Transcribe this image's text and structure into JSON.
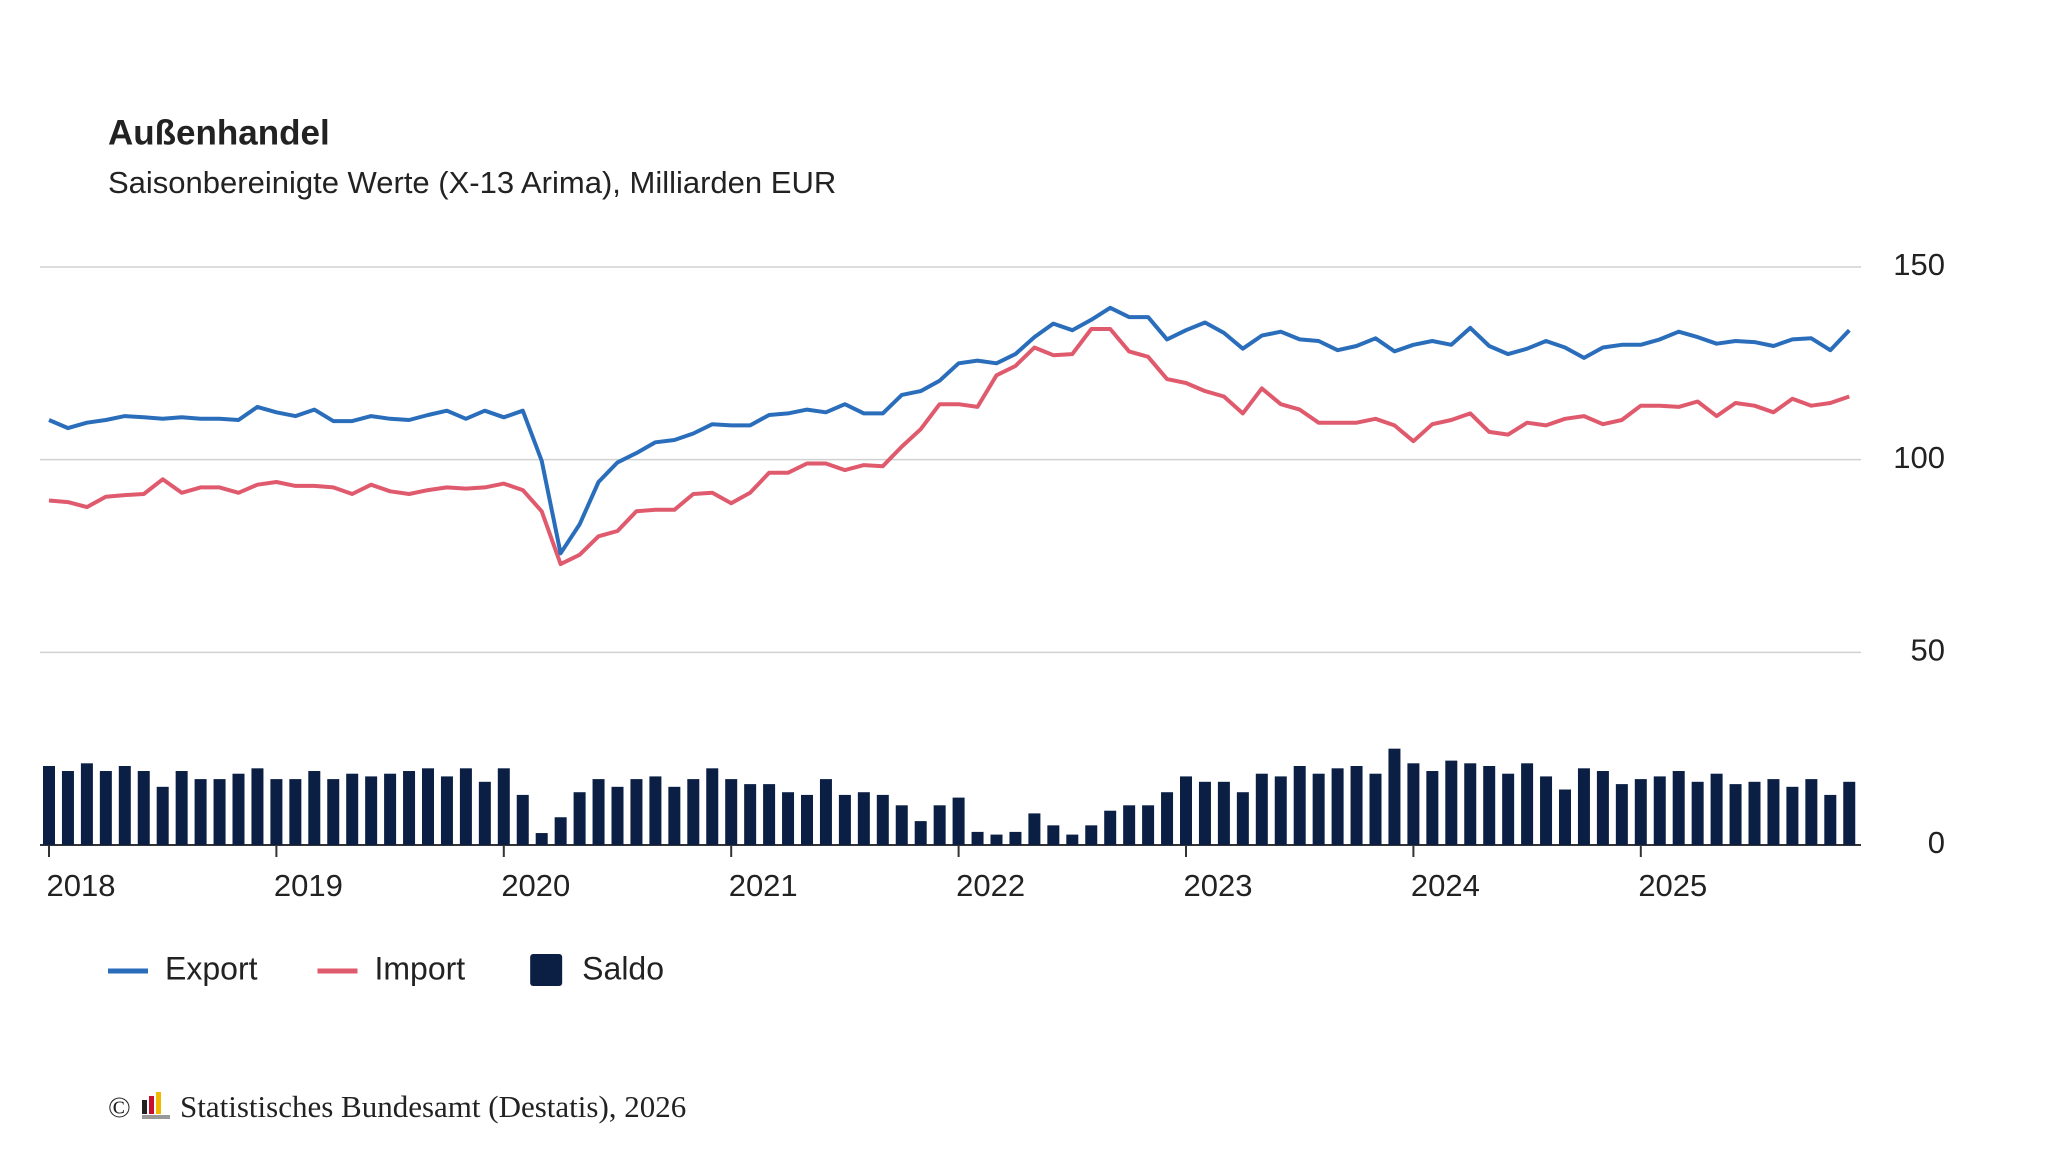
{
  "chart_data": {
    "type": "combo",
    "title": "Außenhandel",
    "subtitle": "Saisonbereinigte Werte (X-13 Arima), Milliarden EUR",
    "categories": [
      "2018",
      null,
      null,
      null,
      null,
      null,
      null,
      null,
      null,
      null,
      null,
      null,
      "2019",
      null,
      null,
      null,
      null,
      null,
      null,
      null,
      null,
      null,
      null,
      null,
      "2020",
      null,
      null,
      null,
      null,
      null,
      null,
      null,
      null,
      null,
      null,
      null,
      "2021",
      null,
      null,
      null,
      null,
      null,
      null,
      null,
      null,
      null,
      null,
      null,
      "2022",
      null,
      null,
      null,
      null,
      null,
      null,
      null,
      null,
      null,
      null,
      null,
      "2023",
      null,
      null,
      null,
      null,
      null,
      null,
      null,
      null,
      null,
      null,
      null,
      "2024",
      null,
      null,
      null,
      null,
      null,
      null,
      null,
      null,
      null,
      null,
      null,
      "2025",
      null,
      null,
      null,
      null,
      null,
      null,
      null,
      null,
      null,
      null,
      null
    ],
    "series": [
      {
        "name": "Export",
        "type": "line",
        "color": "#2a6ebb",
        "values": [
          110.3,
          108.2,
          109.6,
          110.3,
          111.3,
          111,
          110.6,
          111,
          110.6,
          110.6,
          110.3,
          113.7,
          112.3,
          111.3,
          113,
          110,
          110,
          111.3,
          110.6,
          110.3,
          111.6,
          112.7,
          110.6,
          112.7,
          111,
          112.7,
          99.7,
          75.7,
          83.2,
          94.2,
          99.3,
          101.7,
          104.5,
          105.1,
          106.8,
          109.2,
          108.9,
          108.9,
          111.6,
          112,
          113,
          112.3,
          114.4,
          112,
          112,
          116.8,
          117.8,
          120.5,
          125,
          125.7,
          125,
          127.4,
          131.8,
          135.3,
          133.6,
          136.3,
          139.4,
          137,
          137,
          131.2,
          133.6,
          135.6,
          132.9,
          128.8,
          132.2,
          133.2,
          131.2,
          130.8,
          128.4,
          129.5,
          131.5,
          128.1,
          129.8,
          130.8,
          129.8,
          134.2,
          129.5,
          127.4,
          128.8,
          130.8,
          129.1,
          126.4,
          129.1,
          129.8,
          129.8,
          131.2,
          133.2,
          131.8,
          130.1,
          130.8,
          130.5,
          129.5,
          131.2,
          131.5,
          128.4,
          133.6
        ]
      },
      {
        "name": "Import",
        "type": "line",
        "color": "#e05a6e",
        "values": [
          89.4,
          89,
          87.7,
          90.4,
          90.8,
          91.1,
          94.9,
          91.4,
          92.8,
          92.8,
          91.4,
          93.5,
          94.2,
          93.2,
          93.2,
          92.8,
          91.1,
          93.5,
          91.8,
          91.1,
          92.1,
          92.8,
          92.5,
          92.8,
          93.8,
          92.1,
          86.6,
          72.9,
          75.3,
          80.1,
          81.5,
          86.6,
          87,
          87,
          91.1,
          91.4,
          88.7,
          91.4,
          96.6,
          96.6,
          99,
          99,
          97.3,
          98.6,
          98.3,
          103.4,
          107.9,
          114.4,
          114.4,
          113.7,
          121.9,
          124.3,
          129.1,
          127.1,
          127.4,
          133.9,
          133.9,
          128.1,
          126.7,
          120.9,
          119.9,
          117.8,
          116.4,
          112,
          118.5,
          114.4,
          113,
          109.6,
          109.6,
          109.6,
          110.6,
          108.9,
          104.8,
          109.2,
          110.3,
          112,
          107.2,
          106.5,
          109.6,
          108.9,
          110.6,
          111.3,
          109.2,
          110.3,
          114,
          114,
          113.7,
          115.1,
          111.3,
          114.7,
          114,
          112.3,
          115.8,
          114,
          114.7,
          116.4
        ]
      },
      {
        "name": "Saldo",
        "type": "bar",
        "color": "#0b1f45",
        "values": [
          20.5,
          19.2,
          21.2,
          19.2,
          20.5,
          19.2,
          15.1,
          19.2,
          17.1,
          17.1,
          18.5,
          19.9,
          17.1,
          17.1,
          19.2,
          17.1,
          18.5,
          17.8,
          18.5,
          19.2,
          19.9,
          17.8,
          19.9,
          16.4,
          19.9,
          13,
          3.1,
          7.2,
          13.7,
          17.1,
          15.1,
          17.1,
          17.8,
          15.1,
          17.1,
          19.9,
          17.1,
          15.8,
          15.8,
          13.7,
          13,
          17.1,
          13,
          13.7,
          13,
          10.3,
          6.2,
          10.3,
          12.3,
          3.4,
          2.7,
          3.4,
          8.2,
          5.1,
          2.7,
          5.1,
          8.9,
          10.3,
          10.3,
          13.7,
          17.8,
          16.4,
          16.4,
          13.7,
          18.5,
          17.8,
          20.5,
          18.5,
          19.9,
          20.5,
          18.5,
          25,
          21.2,
          19.2,
          21.9,
          21.2,
          20.5,
          18.5,
          21.2,
          17.8,
          14.4,
          19.9,
          19.2,
          15.8,
          17.1,
          17.8,
          19.2,
          16.4,
          18.5,
          15.8,
          16.4,
          17.1,
          15.1,
          17.1,
          13,
          16.4
        ]
      }
    ],
    "ylim": [
      0,
      150
    ],
    "yticks": [
      0,
      50,
      100,
      150
    ],
    "grid": true,
    "axis_side": "right",
    "legend": "bottom-left",
    "source": {
      "copyright": "©",
      "text": "Statistisches Bundesamt (Destatis), 2026"
    }
  }
}
